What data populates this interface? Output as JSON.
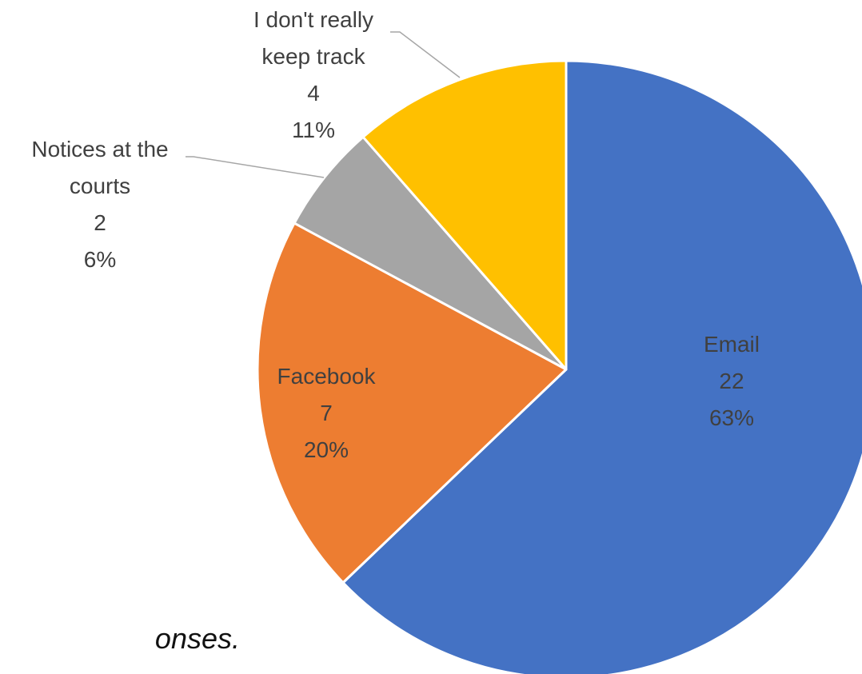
{
  "chart_data": {
    "type": "pie",
    "title": "",
    "slices": [
      {
        "label": [
          "Email"
        ],
        "value": 22,
        "percent": "63%",
        "color": "#4472C4"
      },
      {
        "label": [
          "Facebook"
        ],
        "value": 7,
        "percent": "20%",
        "color": "#ED7D31"
      },
      {
        "label": [
          "Notices at the",
          "courts"
        ],
        "value": 2,
        "percent": "6%",
        "color": "#A5A5A5"
      },
      {
        "label": [
          "I don't really",
          "keep track"
        ],
        "value": 4,
        "percent": "11%",
        "color": "#FFC000"
      }
    ],
    "data_label_content": [
      "category",
      "value",
      "percent"
    ],
    "start_angle_degrees_clockwise_from_top": 0,
    "legend": "none"
  },
  "footnote": {
    "text": "onses."
  },
  "colors": {
    "background": "#FFFFFF",
    "label_text": "#404040",
    "leader_line": "#A6A6A6",
    "slice_border": "#FFFFFF"
  }
}
